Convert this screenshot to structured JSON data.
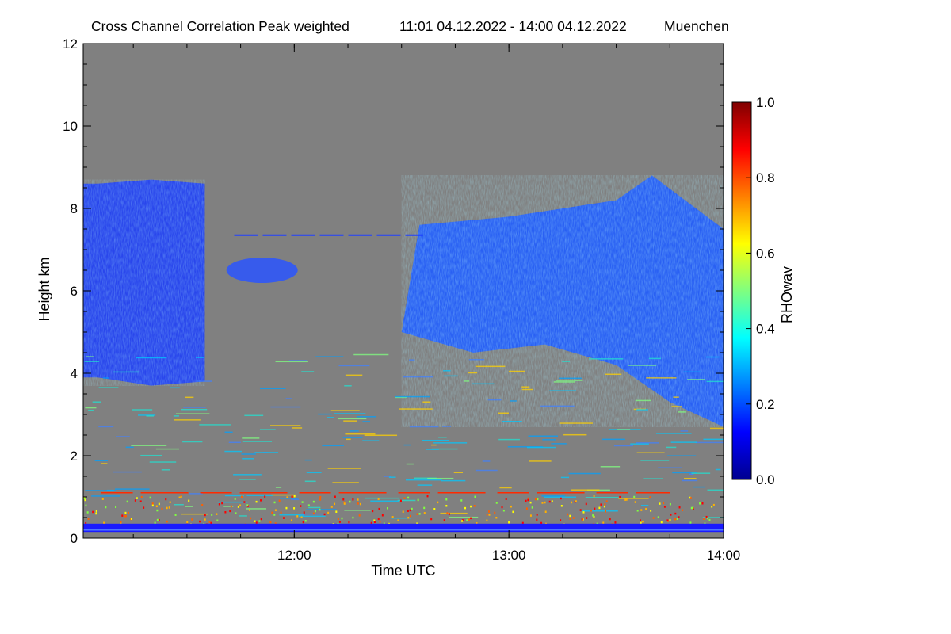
{
  "chart_data": {
    "type": "heatmap",
    "title": "Cross Channel Correlation Peak weighted",
    "time_range": "11:01 04.12.2022 - 14:00 04.12.2022",
    "location": "Muenchen",
    "xlabel": "Time UTC",
    "ylabel": "Height km",
    "x_start": "11:01",
    "x_end": "14:00",
    "xlim_hours": [
      11.0167,
      14.0
    ],
    "x_ticks": [
      "12:00",
      "13:00",
      "14:00"
    ],
    "ylim": [
      0,
      12
    ],
    "y_ticks": [
      "0",
      "2",
      "4",
      "6",
      "8",
      "10",
      "12"
    ],
    "colorbar": {
      "label": "RHOwav",
      "range": [
        0.0,
        1.0
      ],
      "ticks": [
        "0.0",
        "0.2",
        "0.4",
        "0.6",
        "0.8",
        "1.0"
      ],
      "colormap": "jet"
    },
    "background_color": "#808080",
    "cloud_base_km": [
      {
        "time": "11:05",
        "value": 3.9
      },
      {
        "time": "11:20",
        "value": 3.7
      },
      {
        "time": "11:35",
        "value": 3.8
      },
      {
        "time": "12:30",
        "value": 5.0
      },
      {
        "time": "12:50",
        "value": 4.5
      },
      {
        "time": "13:10",
        "value": 4.7
      },
      {
        "time": "13:30",
        "value": 4.2
      },
      {
        "time": "13:45",
        "value": 3.3
      },
      {
        "time": "14:00",
        "value": 2.7
      }
    ],
    "cloud_top_km": [
      {
        "time": "11:05",
        "value": 8.6
      },
      {
        "time": "11:20",
        "value": 8.7
      },
      {
        "time": "11:35",
        "value": 8.6
      },
      {
        "time": "12:35",
        "value": 7.6
      },
      {
        "time": "13:00",
        "value": 7.8
      },
      {
        "time": "13:30",
        "value": 8.2
      },
      {
        "time": "13:40",
        "value": 8.8
      },
      {
        "time": "14:00",
        "value": 7.5
      }
    ],
    "boundary_layer_band_km": [
      0.15,
      0.35
    ],
    "residual_layer_km": 1.1
  }
}
